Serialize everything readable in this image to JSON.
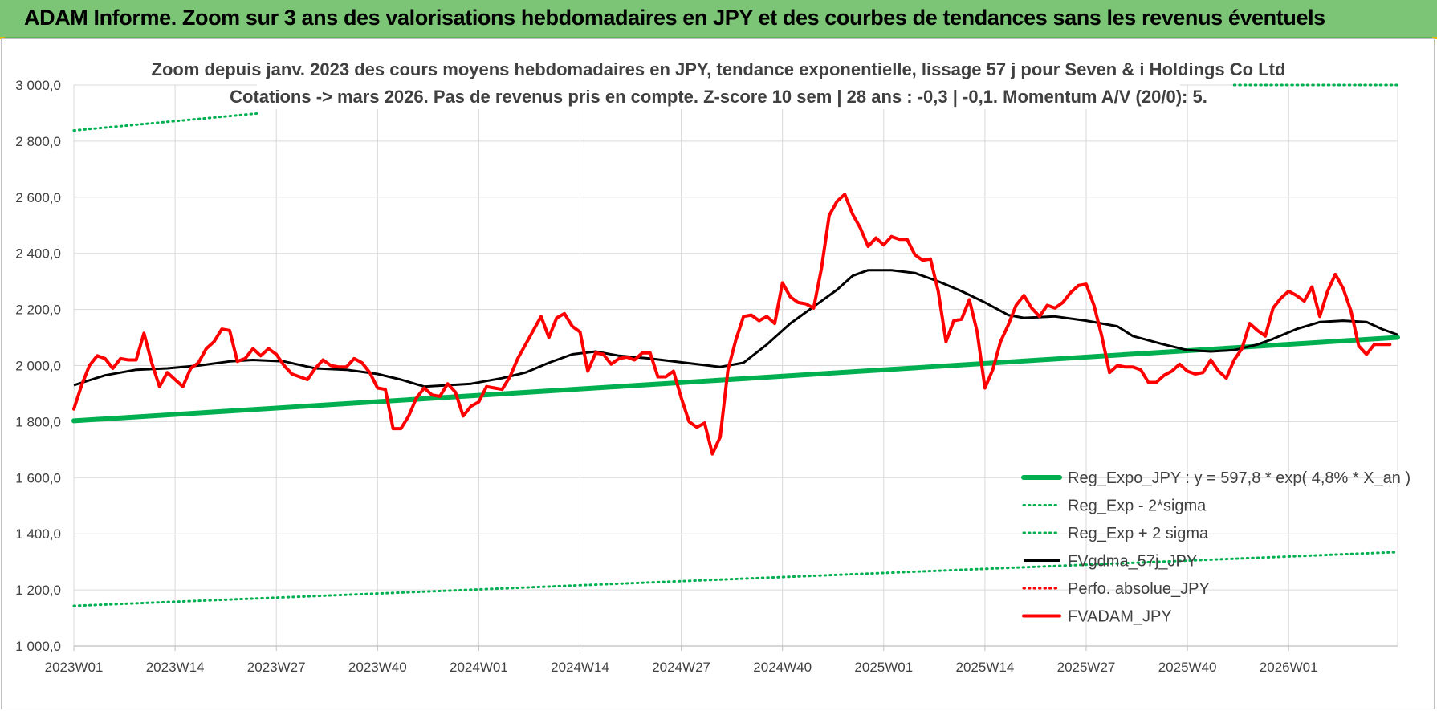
{
  "banner": {
    "title": "ADAM Informe. Zoom sur 3 ans des valorisations hebdomadaires en JPY et des courbes de tendances sans les revenus éventuels",
    "background": "#7cc576"
  },
  "chart_data": {
    "type": "line",
    "title": "Zoom depuis janv. 2023 des cours moyens hebdomadaires en JPY, tendance exponentielle, lissage 57 j pour Seven & i Holdings Co Ltd",
    "subtitle": "Cotations -> mars 2026. Pas de revenus pris en compte. Z-score 10 sem | 28 ans : -0,3 | -0,1. Momentum A/V (20/0): 5.",
    "x_tick_labels": [
      "2023W01",
      "2023W14",
      "2023W27",
      "2023W40",
      "2024W01",
      "2024W14",
      "2024W27",
      "2024W40",
      "2025W01",
      "2025W14",
      "2025W27",
      "2025W40",
      "2026W01"
    ],
    "x_tick_weeks": [
      0,
      13,
      26,
      39,
      52,
      65,
      78,
      91,
      104,
      117,
      130,
      143,
      156
    ],
    "weeks_total": 170,
    "y_tick_labels": [
      "1 000,0",
      "1 200,0",
      "1 400,0",
      "1 600,0",
      "1 800,0",
      "2 000,0",
      "2 200,0",
      "2 400,0",
      "2 600,0",
      "2 800,0",
      "3 000,0"
    ],
    "ylim": [
      1000,
      3000
    ],
    "y_step": 200,
    "grid": true,
    "legend_position": "bottom-right",
    "series": [
      {
        "name": "Reg_Expo_JPY : y = 597,8 * exp( 4,8% *  X_an )",
        "color": "#00b050",
        "style": "thick",
        "points": [
          [
            0,
            1803
          ],
          [
            170,
            2100
          ]
        ]
      },
      {
        "name": "Reg_Exp - 2*sigma",
        "color": "#00b050",
        "style": "dotted",
        "points": [
          [
            0,
            1143
          ],
          [
            170,
            1335
          ]
        ]
      },
      {
        "name": "Reg_Exp + 2 sigma",
        "color": "#00b050",
        "style": "dotted",
        "points": [
          [
            0,
            2838
          ],
          [
            24,
            2900
          ]
        ],
        "points_right": [
          [
            149,
            3000
          ],
          [
            170,
            3000
          ]
        ]
      },
      {
        "name": "FVgdma_57j_JPY",
        "color": "#000000",
        "style": "solid",
        "points": [
          [
            0,
            1930
          ],
          [
            4,
            1965
          ],
          [
            8,
            1985
          ],
          [
            12,
            1990
          ],
          [
            16,
            2000
          ],
          [
            20,
            2015
          ],
          [
            23,
            2020
          ],
          [
            27,
            2015
          ],
          [
            31,
            1990
          ],
          [
            35,
            1985
          ],
          [
            39,
            1970
          ],
          [
            42,
            1950
          ],
          [
            45,
            1925
          ],
          [
            48,
            1930
          ],
          [
            51,
            1935
          ],
          [
            55,
            1955
          ],
          [
            58,
            1975
          ],
          [
            61,
            2010
          ],
          [
            64,
            2040
          ],
          [
            67,
            2050
          ],
          [
            70,
            2035
          ],
          [
            74,
            2025
          ],
          [
            77,
            2015
          ],
          [
            80,
            2005
          ],
          [
            83,
            1995
          ],
          [
            86,
            2010
          ],
          [
            89,
            2075
          ],
          [
            92,
            2150
          ],
          [
            95,
            2210
          ],
          [
            98,
            2270
          ],
          [
            100,
            2320
          ],
          [
            102,
            2340
          ],
          [
            105,
            2340
          ],
          [
            108,
            2330
          ],
          [
            111,
            2300
          ],
          [
            114,
            2265
          ],
          [
            117,
            2225
          ],
          [
            120,
            2180
          ],
          [
            122,
            2170
          ],
          [
            126,
            2175
          ],
          [
            130,
            2160
          ],
          [
            134,
            2140
          ],
          [
            136,
            2105
          ],
          [
            140,
            2075
          ],
          [
            143,
            2055
          ],
          [
            146,
            2050
          ],
          [
            149,
            2055
          ],
          [
            152,
            2075
          ],
          [
            154,
            2095
          ],
          [
            157,
            2130
          ],
          [
            160,
            2155
          ],
          [
            163,
            2160
          ],
          [
            166,
            2155
          ],
          [
            168,
            2130
          ],
          [
            170,
            2110
          ]
        ]
      },
      {
        "name": "Perfo. absolue_JPY",
        "color": "#ff0000",
        "style": "dotted",
        "points": []
      },
      {
        "name": "FVADAM_JPY",
        "color": "#ff0000",
        "style": "thick",
        "points": [
          [
            0,
            1845
          ],
          [
            1,
            1930
          ],
          [
            2,
            2000
          ],
          [
            3,
            2035
          ],
          [
            4,
            2025
          ],
          [
            5,
            1990
          ],
          [
            6,
            2025
          ],
          [
            7,
            2020
          ],
          [
            8,
            2020
          ],
          [
            9,
            2115
          ],
          [
            10,
            2010
          ],
          [
            11,
            1925
          ],
          [
            12,
            1975
          ],
          [
            13,
            1950
          ],
          [
            14,
            1925
          ],
          [
            15,
            1990
          ],
          [
            16,
            2010
          ],
          [
            17,
            2060
          ],
          [
            18,
            2085
          ],
          [
            19,
            2130
          ],
          [
            20,
            2125
          ],
          [
            21,
            2015
          ],
          [
            22,
            2025
          ],
          [
            23,
            2060
          ],
          [
            24,
            2035
          ],
          [
            25,
            2060
          ],
          [
            26,
            2040
          ],
          [
            27,
            2000
          ],
          [
            28,
            1970
          ],
          [
            29,
            1960
          ],
          [
            30,
            1950
          ],
          [
            31,
            1990
          ],
          [
            32,
            2020
          ],
          [
            33,
            2000
          ],
          [
            34,
            1995
          ],
          [
            35,
            1995
          ],
          [
            36,
            2025
          ],
          [
            37,
            2010
          ],
          [
            38,
            1975
          ],
          [
            39,
            1920
          ],
          [
            40,
            1915
          ],
          [
            41,
            1775
          ],
          [
            42,
            1775
          ],
          [
            43,
            1820
          ],
          [
            44,
            1885
          ],
          [
            45,
            1920
          ],
          [
            46,
            1895
          ],
          [
            47,
            1890
          ],
          [
            48,
            1935
          ],
          [
            49,
            1905
          ],
          [
            50,
            1820
          ],
          [
            51,
            1855
          ],
          [
            52,
            1870
          ],
          [
            53,
            1925
          ],
          [
            54,
            1920
          ],
          [
            55,
            1915
          ],
          [
            56,
            1960
          ],
          [
            57,
            2025
          ],
          [
            58,
            2075
          ],
          [
            59,
            2125
          ],
          [
            60,
            2175
          ],
          [
            61,
            2100
          ],
          [
            62,
            2170
          ],
          [
            63,
            2185
          ],
          [
            64,
            2140
          ],
          [
            65,
            2120
          ],
          [
            66,
            1980
          ],
          [
            67,
            2045
          ],
          [
            68,
            2040
          ],
          [
            69,
            2005
          ],
          [
            70,
            2025
          ],
          [
            71,
            2030
          ],
          [
            72,
            2020
          ],
          [
            73,
            2045
          ],
          [
            74,
            2045
          ],
          [
            75,
            1960
          ],
          [
            76,
            1960
          ],
          [
            77,
            1980
          ],
          [
            78,
            1885
          ],
          [
            79,
            1800
          ],
          [
            80,
            1780
          ],
          [
            81,
            1795
          ],
          [
            82,
            1685
          ],
          [
            83,
            1745
          ],
          [
            84,
            1985
          ],
          [
            85,
            2090
          ],
          [
            86,
            2175
          ],
          [
            87,
            2180
          ],
          [
            88,
            2160
          ],
          [
            89,
            2175
          ],
          [
            90,
            2150
          ],
          [
            91,
            2295
          ],
          [
            92,
            2245
          ],
          [
            93,
            2225
          ],
          [
            94,
            2220
          ],
          [
            95,
            2205
          ],
          [
            96,
            2345
          ],
          [
            97,
            2535
          ],
          [
            98,
            2585
          ],
          [
            99,
            2610
          ],
          [
            100,
            2540
          ],
          [
            101,
            2490
          ],
          [
            102,
            2425
          ],
          [
            103,
            2455
          ],
          [
            104,
            2430
          ],
          [
            105,
            2460
          ],
          [
            106,
            2450
          ],
          [
            107,
            2450
          ],
          [
            108,
            2395
          ],
          [
            109,
            2375
          ],
          [
            110,
            2380
          ],
          [
            111,
            2265
          ],
          [
            112,
            2085
          ],
          [
            113,
            2160
          ],
          [
            114,
            2165
          ],
          [
            115,
            2235
          ],
          [
            116,
            2120
          ],
          [
            117,
            1920
          ],
          [
            118,
            1985
          ],
          [
            119,
            2085
          ],
          [
            120,
            2145
          ],
          [
            121,
            2215
          ],
          [
            122,
            2250
          ],
          [
            123,
            2205
          ],
          [
            124,
            2175
          ],
          [
            125,
            2215
          ],
          [
            126,
            2205
          ],
          [
            127,
            2225
          ],
          [
            128,
            2260
          ],
          [
            129,
            2285
          ],
          [
            130,
            2290
          ],
          [
            131,
            2215
          ],
          [
            132,
            2105
          ],
          [
            133,
            1975
          ],
          [
            134,
            2000
          ],
          [
            135,
            1995
          ],
          [
            136,
            1995
          ],
          [
            137,
            1985
          ],
          [
            138,
            1940
          ],
          [
            139,
            1940
          ],
          [
            140,
            1965
          ],
          [
            141,
            1980
          ],
          [
            142,
            2005
          ],
          [
            143,
            1980
          ],
          [
            144,
            1970
          ],
          [
            145,
            1975
          ],
          [
            146,
            2020
          ],
          [
            147,
            1980
          ],
          [
            148,
            1955
          ],
          [
            149,
            2020
          ],
          [
            150,
            2060
          ],
          [
            151,
            2150
          ],
          [
            152,
            2125
          ],
          [
            153,
            2105
          ],
          [
            154,
            2205
          ],
          [
            155,
            2240
          ],
          [
            156,
            2265
          ],
          [
            157,
            2250
          ],
          [
            158,
            2230
          ],
          [
            159,
            2280
          ],
          [
            160,
            2175
          ],
          [
            161,
            2265
          ],
          [
            162,
            2325
          ],
          [
            163,
            2275
          ],
          [
            164,
            2195
          ],
          [
            165,
            2070
          ],
          [
            166,
            2040
          ],
          [
            167,
            2075
          ],
          [
            168,
            2075
          ],
          [
            169,
            2075
          ]
        ]
      }
    ]
  }
}
